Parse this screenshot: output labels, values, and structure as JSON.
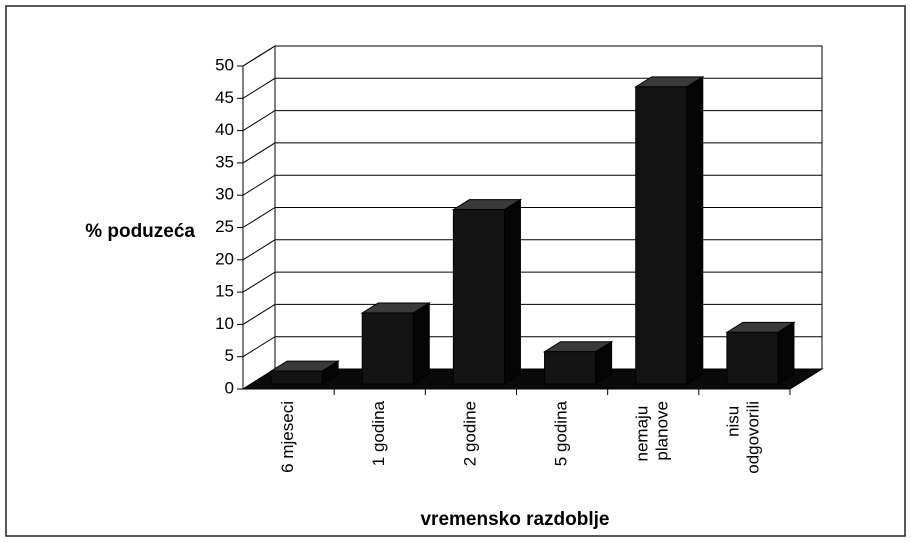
{
  "chart_data": {
    "type": "bar3d",
    "y_label": "% poduzeća",
    "x_label": "vremensko razdoblje",
    "categories": [
      "6 mjeseci",
      "1 godina",
      "2 godine",
      "5 godina",
      "nemaju planove",
      "nisu odgovorili"
    ],
    "values": [
      2,
      11,
      27,
      5,
      46,
      8
    ],
    "color": "#141414",
    "ylim": [
      0,
      50
    ],
    "yticks": [
      0,
      5,
      10,
      15,
      20,
      25,
      30,
      35,
      40,
      45,
      50
    ],
    "grid": true
  }
}
